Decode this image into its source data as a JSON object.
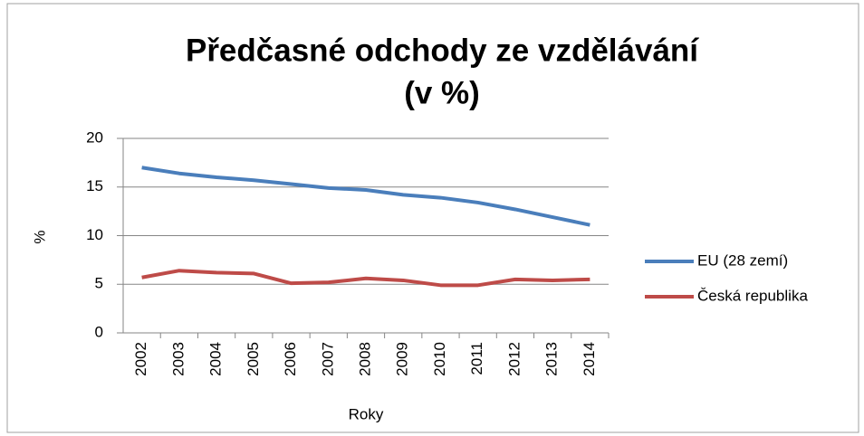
{
  "chart_data": {
    "type": "line",
    "title": [
      "Předčasné odchody ze vzdělávání",
      "(v %)"
    ],
    "y_label": "%",
    "x_label": "Roky",
    "categories": [
      "2002",
      "2003",
      "2004",
      "2005",
      "2006",
      "2007",
      "2008",
      "2009",
      "2010",
      "2011",
      "2012",
      "2013",
      "2014"
    ],
    "series": [
      {
        "name": "EU (28 zemí)",
        "color": "#4a7ebb",
        "values": [
          17.0,
          16.4,
          16.0,
          15.7,
          15.3,
          14.9,
          14.7,
          14.2,
          13.9,
          13.4,
          12.7,
          11.9,
          11.1
        ]
      },
      {
        "name": "Česká republika",
        "color": "#be4b48",
        "values": [
          5.7,
          6.4,
          6.2,
          6.1,
          5.1,
          5.2,
          5.6,
          5.4,
          4.9,
          4.9,
          5.5,
          5.4,
          5.5
        ]
      }
    ],
    "ylim": [
      0,
      20
    ],
    "yticks": [
      0,
      5,
      10,
      15,
      20
    ],
    "grid": true,
    "legend": "right"
  }
}
